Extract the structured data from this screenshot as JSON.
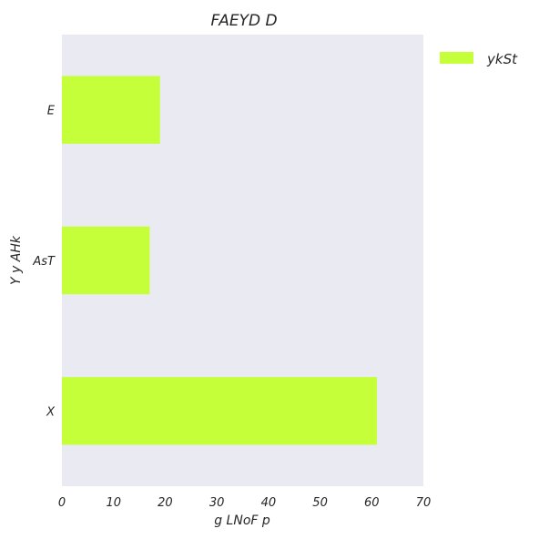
{
  "chart_data": {
    "type": "bar",
    "orientation": "horizontal",
    "title": "FAEYD  D",
    "xlabel": "g LNoF p",
    "ylabel": "Y y AHk",
    "categories": [
      "E",
      "AsT",
      "X"
    ],
    "series": [
      {
        "name": "ykSt",
        "values": [
          19,
          17,
          61
        ],
        "color": "#c4ff3a"
      }
    ],
    "xlim": [
      0,
      70
    ],
    "xticks": [
      "0",
      "10",
      "20",
      "30",
      "40",
      "50",
      "60",
      "70"
    ],
    "grid": false,
    "legend_position": "outside-top-right",
    "plot_background": "#eaeaf2"
  }
}
